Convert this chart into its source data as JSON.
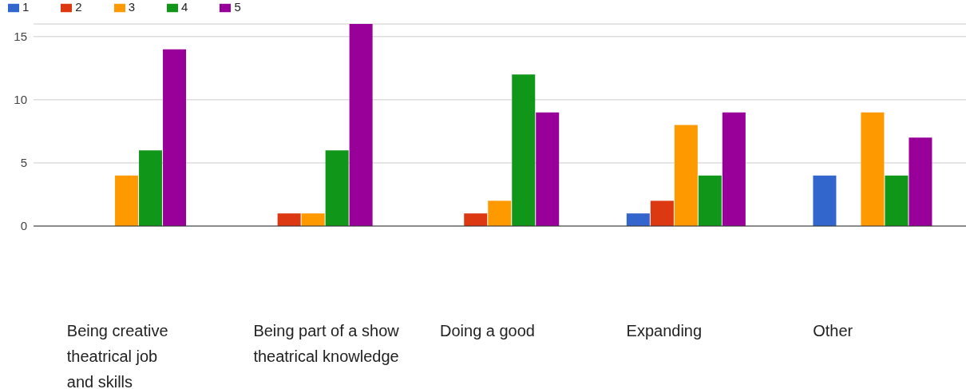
{
  "chart_data": {
    "type": "bar",
    "categories": [
      "Being creative\ntheatrical job\nand skills",
      "Being part of a show\ntheatrical knowledge",
      "Doing a good",
      "Expanding",
      "Other"
    ],
    "series": [
      {
        "name": "1",
        "color": "#3366cc",
        "values": [
          0,
          0,
          0,
          1,
          4
        ]
      },
      {
        "name": "2",
        "color": "#dc3912",
        "values": [
          0,
          1,
          1,
          2,
          0
        ]
      },
      {
        "name": "3",
        "color": "#ff9900",
        "values": [
          4,
          1,
          2,
          8,
          9
        ]
      },
      {
        "name": "4",
        "color": "#109618",
        "values": [
          6,
          6,
          12,
          4,
          4
        ]
      },
      {
        "name": "5",
        "color": "#990099",
        "values": [
          14,
          16,
          9,
          9,
          7
        ]
      }
    ],
    "ylim": [
      0,
      16
    ],
    "yticks": [
      0,
      5,
      10,
      15
    ],
    "grid": "y",
    "legend": "top left"
  }
}
